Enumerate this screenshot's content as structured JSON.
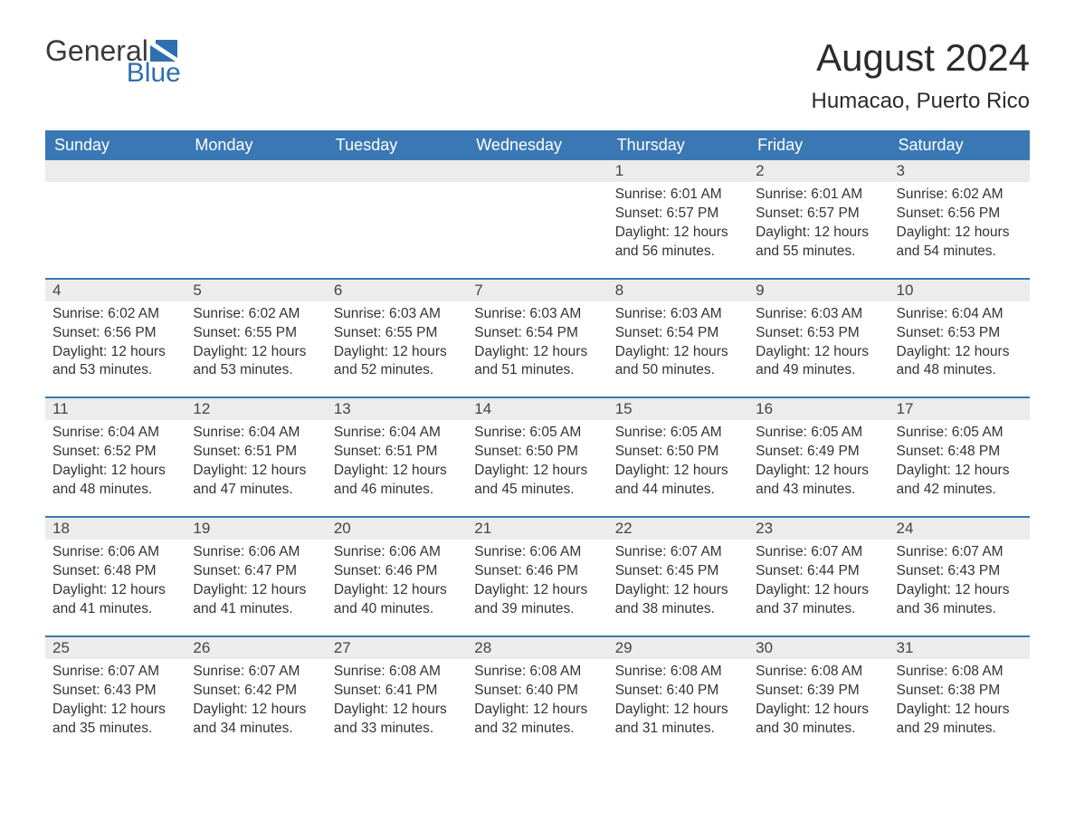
{
  "brand": {
    "word1": "General",
    "word2": "Blue",
    "shape_color": "#2f6fb0",
    "text1_color": "#3a3a3a",
    "text2_color": "#2f6fb0"
  },
  "title": "August 2024",
  "location": "Humacao, Puerto Rico",
  "colors": {
    "header_bg": "#3a78b5",
    "header_text": "#ffffff",
    "week_rule": "#3a78b5",
    "daynum_bg": "#ececec",
    "daynum_text": "#444444",
    "body_text": "#333333",
    "background": "#ffffff"
  },
  "typography": {
    "title_fontsize": 42,
    "location_fontsize": 24,
    "header_fontsize": 18,
    "daynum_fontsize": 17,
    "body_fontsize": 15.5,
    "font_family": "Arial"
  },
  "day_names": [
    "Sunday",
    "Monday",
    "Tuesday",
    "Wednesday",
    "Thursday",
    "Friday",
    "Saturday"
  ],
  "weeks": [
    [
      {
        "day": "",
        "sunrise": "",
        "sunset": "",
        "daylight": ""
      },
      {
        "day": "",
        "sunrise": "",
        "sunset": "",
        "daylight": ""
      },
      {
        "day": "",
        "sunrise": "",
        "sunset": "",
        "daylight": ""
      },
      {
        "day": "",
        "sunrise": "",
        "sunset": "",
        "daylight": ""
      },
      {
        "day": "1",
        "sunrise": "Sunrise: 6:01 AM",
        "sunset": "Sunset: 6:57 PM",
        "daylight": "Daylight: 12 hours and 56 minutes."
      },
      {
        "day": "2",
        "sunrise": "Sunrise: 6:01 AM",
        "sunset": "Sunset: 6:57 PM",
        "daylight": "Daylight: 12 hours and 55 minutes."
      },
      {
        "day": "3",
        "sunrise": "Sunrise: 6:02 AM",
        "sunset": "Sunset: 6:56 PM",
        "daylight": "Daylight: 12 hours and 54 minutes."
      }
    ],
    [
      {
        "day": "4",
        "sunrise": "Sunrise: 6:02 AM",
        "sunset": "Sunset: 6:56 PM",
        "daylight": "Daylight: 12 hours and 53 minutes."
      },
      {
        "day": "5",
        "sunrise": "Sunrise: 6:02 AM",
        "sunset": "Sunset: 6:55 PM",
        "daylight": "Daylight: 12 hours and 53 minutes."
      },
      {
        "day": "6",
        "sunrise": "Sunrise: 6:03 AM",
        "sunset": "Sunset: 6:55 PM",
        "daylight": "Daylight: 12 hours and 52 minutes."
      },
      {
        "day": "7",
        "sunrise": "Sunrise: 6:03 AM",
        "sunset": "Sunset: 6:54 PM",
        "daylight": "Daylight: 12 hours and 51 minutes."
      },
      {
        "day": "8",
        "sunrise": "Sunrise: 6:03 AM",
        "sunset": "Sunset: 6:54 PM",
        "daylight": "Daylight: 12 hours and 50 minutes."
      },
      {
        "day": "9",
        "sunrise": "Sunrise: 6:03 AM",
        "sunset": "Sunset: 6:53 PM",
        "daylight": "Daylight: 12 hours and 49 minutes."
      },
      {
        "day": "10",
        "sunrise": "Sunrise: 6:04 AM",
        "sunset": "Sunset: 6:53 PM",
        "daylight": "Daylight: 12 hours and 48 minutes."
      }
    ],
    [
      {
        "day": "11",
        "sunrise": "Sunrise: 6:04 AM",
        "sunset": "Sunset: 6:52 PM",
        "daylight": "Daylight: 12 hours and 48 minutes."
      },
      {
        "day": "12",
        "sunrise": "Sunrise: 6:04 AM",
        "sunset": "Sunset: 6:51 PM",
        "daylight": "Daylight: 12 hours and 47 minutes."
      },
      {
        "day": "13",
        "sunrise": "Sunrise: 6:04 AM",
        "sunset": "Sunset: 6:51 PM",
        "daylight": "Daylight: 12 hours and 46 minutes."
      },
      {
        "day": "14",
        "sunrise": "Sunrise: 6:05 AM",
        "sunset": "Sunset: 6:50 PM",
        "daylight": "Daylight: 12 hours and 45 minutes."
      },
      {
        "day": "15",
        "sunrise": "Sunrise: 6:05 AM",
        "sunset": "Sunset: 6:50 PM",
        "daylight": "Daylight: 12 hours and 44 minutes."
      },
      {
        "day": "16",
        "sunrise": "Sunrise: 6:05 AM",
        "sunset": "Sunset: 6:49 PM",
        "daylight": "Daylight: 12 hours and 43 minutes."
      },
      {
        "day": "17",
        "sunrise": "Sunrise: 6:05 AM",
        "sunset": "Sunset: 6:48 PM",
        "daylight": "Daylight: 12 hours and 42 minutes."
      }
    ],
    [
      {
        "day": "18",
        "sunrise": "Sunrise: 6:06 AM",
        "sunset": "Sunset: 6:48 PM",
        "daylight": "Daylight: 12 hours and 41 minutes."
      },
      {
        "day": "19",
        "sunrise": "Sunrise: 6:06 AM",
        "sunset": "Sunset: 6:47 PM",
        "daylight": "Daylight: 12 hours and 41 minutes."
      },
      {
        "day": "20",
        "sunrise": "Sunrise: 6:06 AM",
        "sunset": "Sunset: 6:46 PM",
        "daylight": "Daylight: 12 hours and 40 minutes."
      },
      {
        "day": "21",
        "sunrise": "Sunrise: 6:06 AM",
        "sunset": "Sunset: 6:46 PM",
        "daylight": "Daylight: 12 hours and 39 minutes."
      },
      {
        "day": "22",
        "sunrise": "Sunrise: 6:07 AM",
        "sunset": "Sunset: 6:45 PM",
        "daylight": "Daylight: 12 hours and 38 minutes."
      },
      {
        "day": "23",
        "sunrise": "Sunrise: 6:07 AM",
        "sunset": "Sunset: 6:44 PM",
        "daylight": "Daylight: 12 hours and 37 minutes."
      },
      {
        "day": "24",
        "sunrise": "Sunrise: 6:07 AM",
        "sunset": "Sunset: 6:43 PM",
        "daylight": "Daylight: 12 hours and 36 minutes."
      }
    ],
    [
      {
        "day": "25",
        "sunrise": "Sunrise: 6:07 AM",
        "sunset": "Sunset: 6:43 PM",
        "daylight": "Daylight: 12 hours and 35 minutes."
      },
      {
        "day": "26",
        "sunrise": "Sunrise: 6:07 AM",
        "sunset": "Sunset: 6:42 PM",
        "daylight": "Daylight: 12 hours and 34 minutes."
      },
      {
        "day": "27",
        "sunrise": "Sunrise: 6:08 AM",
        "sunset": "Sunset: 6:41 PM",
        "daylight": "Daylight: 12 hours and 33 minutes."
      },
      {
        "day": "28",
        "sunrise": "Sunrise: 6:08 AM",
        "sunset": "Sunset: 6:40 PM",
        "daylight": "Daylight: 12 hours and 32 minutes."
      },
      {
        "day": "29",
        "sunrise": "Sunrise: 6:08 AM",
        "sunset": "Sunset: 6:40 PM",
        "daylight": "Daylight: 12 hours and 31 minutes."
      },
      {
        "day": "30",
        "sunrise": "Sunrise: 6:08 AM",
        "sunset": "Sunset: 6:39 PM",
        "daylight": "Daylight: 12 hours and 30 minutes."
      },
      {
        "day": "31",
        "sunrise": "Sunrise: 6:08 AM",
        "sunset": "Sunset: 6:38 PM",
        "daylight": "Daylight: 12 hours and 29 minutes."
      }
    ]
  ]
}
